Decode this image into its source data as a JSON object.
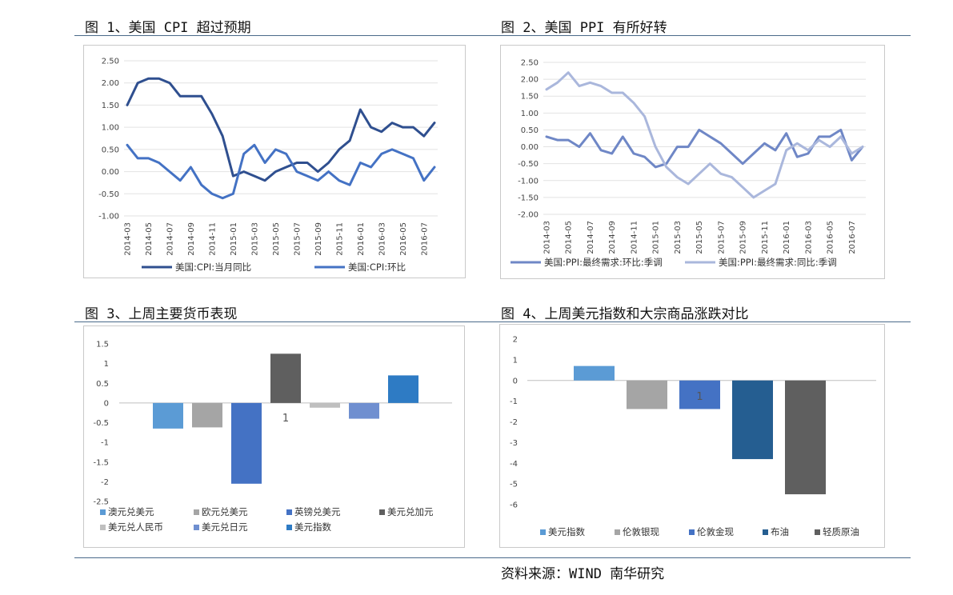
{
  "titles": {
    "c1": "图 1、美国 CPI 超过预期",
    "c2": "图 2、美国 PPI 有所好转",
    "c3": "图 3、上周主要货币表现",
    "c4": "图 4、上周美元指数和大宗商品涨跌对比"
  },
  "source": "资料来源：WIND 南华研究",
  "colors": {
    "dark_blue": "#2f4f8f",
    "mid_blue": "#4472c4",
    "light_blue": "#aab7dc",
    "ppi_dark": "#6f87c6",
    "rule": "#4a6a8a"
  },
  "chart_data": [
    {
      "id": "c1",
      "type": "line",
      "ylim": [
        -1.0,
        2.5
      ],
      "yticks": [
        "2.50",
        "2.00",
        "1.50",
        "1.00",
        "0.50",
        "0.00",
        "-0.50",
        "-1.00"
      ],
      "xlabels": [
        "2014-03",
        "2014-05",
        "2014-07",
        "2014-09",
        "2014-11",
        "2015-01",
        "2015-03",
        "2015-05",
        "2015-07",
        "2015-09",
        "2015-11",
        "2016-01",
        "2016-03",
        "2016-05",
        "2016-07"
      ],
      "series": [
        {
          "name": "美国:CPI:当月同比",
          "color": "#2f4f8f",
          "values": [
            1.5,
            2.0,
            2.1,
            2.1,
            2.0,
            1.7,
            1.7,
            1.7,
            1.3,
            0.8,
            -0.1,
            0.0,
            -0.1,
            -0.2,
            0.0,
            0.1,
            0.2,
            0.2,
            0.0,
            0.2,
            0.5,
            0.7,
            1.4,
            1.0,
            0.9,
            1.1,
            1.0,
            1.0,
            0.8,
            1.1
          ]
        },
        {
          "name": "美国:CPI:环比",
          "color": "#4472c4",
          "values": [
            0.6,
            0.3,
            0.3,
            0.2,
            0.0,
            -0.2,
            0.1,
            -0.3,
            -0.5,
            -0.6,
            -0.5,
            0.4,
            0.6,
            0.2,
            0.5,
            0.4,
            0.0,
            -0.1,
            -0.2,
            0.0,
            -0.2,
            -0.3,
            0.2,
            0.1,
            0.4,
            0.5,
            0.4,
            0.3,
            -0.2,
            0.1
          ]
        }
      ]
    },
    {
      "id": "c2",
      "type": "line",
      "ylim": [
        -2.0,
        2.5
      ],
      "yticks": [
        "2.50",
        "2.00",
        "1.50",
        "1.00",
        "0.50",
        "0.00",
        "-0.50",
        "-1.00",
        "-1.50",
        "-2.00"
      ],
      "xlabels": [
        "2014-03",
        "2014-05",
        "2014-07",
        "2014-09",
        "2014-11",
        "2015-01",
        "2015-03",
        "2015-05",
        "2015-07",
        "2015-09",
        "2015-11",
        "2016-01",
        "2016-03",
        "2016-05",
        "2016-07"
      ],
      "series": [
        {
          "name": "美国:PPI:最终需求:环比:季调",
          "color": "#6f87c6",
          "values": [
            0.3,
            0.2,
            0.2,
            0.0,
            0.4,
            -0.1,
            -0.2,
            0.3,
            -0.2,
            -0.3,
            -0.6,
            -0.5,
            0.0,
            0.0,
            0.5,
            0.3,
            0.1,
            -0.2,
            -0.5,
            -0.2,
            0.1,
            -0.1,
            0.4,
            -0.3,
            -0.2,
            0.3,
            0.3,
            0.5,
            -0.4,
            0.0
          ]
        },
        {
          "name": "美国:PPI:最终需求:同比:季调",
          "color": "#aab7dc",
          "values": [
            1.7,
            1.9,
            2.2,
            1.8,
            1.9,
            1.8,
            1.6,
            1.6,
            1.3,
            0.9,
            0.0,
            -0.6,
            -0.9,
            -1.1,
            -0.8,
            -0.5,
            -0.8,
            -0.9,
            -1.2,
            -1.5,
            -1.3,
            -1.1,
            -0.1,
            0.1,
            -0.1,
            0.2,
            0.0,
            0.3,
            -0.2,
            0.0
          ]
        }
      ]
    },
    {
      "id": "c3",
      "type": "bar",
      "ylim": [
        -2.5,
        1.5
      ],
      "yticks": [
        "1.5",
        "1",
        "0.5",
        "0",
        "-0.5",
        "-1",
        "-1.5",
        "-2",
        "-2.5"
      ],
      "data_label": "1",
      "series": [
        {
          "name": "澳元兑美元",
          "value": -0.65,
          "color": "#5b9bd5"
        },
        {
          "name": "欧元兑美元",
          "value": -0.62,
          "color": "#a5a5a5"
        },
        {
          "name": "英镑兑美元",
          "value": -2.05,
          "color": "#4472c4"
        },
        {
          "name": "美元兑加元",
          "value": 1.25,
          "color": "#5f5f5f"
        },
        {
          "name": "美元兑人民币",
          "value": -0.12,
          "color": "#bfbfbf"
        },
        {
          "name": "美元兑日元",
          "value": -0.4,
          "color": "#6f8fd0"
        },
        {
          "name": "美元指数",
          "value": 0.7,
          "color": "#2e7bc4"
        }
      ]
    },
    {
      "id": "c4",
      "type": "bar",
      "ylim": [
        -6,
        2
      ],
      "yticks": [
        "2",
        "1",
        "0",
        "-1",
        "-2",
        "-3",
        "-4",
        "-5",
        "-6"
      ],
      "data_label": "1",
      "series": [
        {
          "name": "美元指数",
          "value": 0.7,
          "color": "#5b9bd5"
        },
        {
          "name": "伦敦银现",
          "value": -1.38,
          "color": "#a5a5a5"
        },
        {
          "name": "伦敦金现",
          "value": -1.38,
          "color": "#4472c4"
        },
        {
          "name": "布油",
          "value": -3.8,
          "color": "#255e91"
        },
        {
          "name": "轻质原油",
          "value": -5.5,
          "color": "#5f5f5f"
        }
      ]
    }
  ]
}
